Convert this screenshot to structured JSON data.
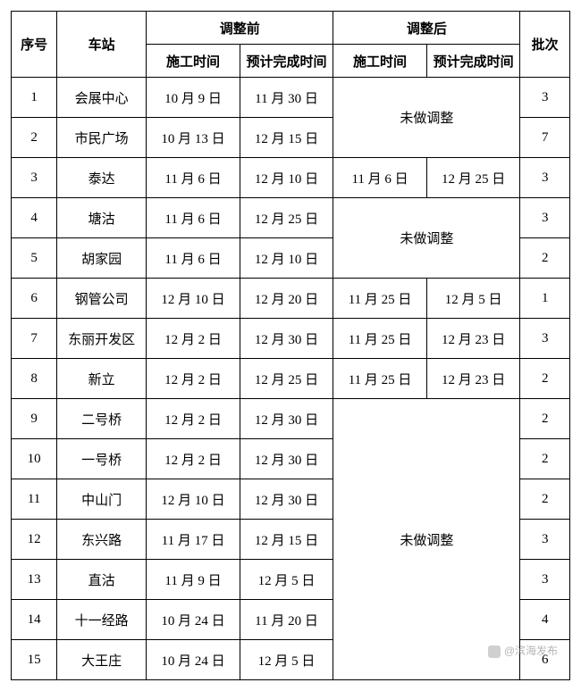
{
  "headers": {
    "seq": "序号",
    "station": "车站",
    "before": "调整前",
    "after": "调整后",
    "batch": "批次",
    "start": "施工时间",
    "finish": "预计完成时间"
  },
  "no_change": "未做调整",
  "rows": [
    {
      "seq": "1",
      "station": "会展中心",
      "b_start": "10 月 9 日",
      "b_end": "11 月 30 日",
      "batch": "3"
    },
    {
      "seq": "2",
      "station": "市民广场",
      "b_start": "10 月 13 日",
      "b_end": "12 月 15 日",
      "batch": "7"
    },
    {
      "seq": "3",
      "station": "泰达",
      "b_start": "11 月 6 日",
      "b_end": "12 月 10 日",
      "a_start": "11 月 6 日",
      "a_end": "12 月 25 日",
      "batch": "3"
    },
    {
      "seq": "4",
      "station": "塘沽",
      "b_start": "11 月 6 日",
      "b_end": "12 月 25 日",
      "batch": "3"
    },
    {
      "seq": "5",
      "station": "胡家园",
      "b_start": "11 月 6 日",
      "b_end": "12 月 10 日",
      "batch": "2"
    },
    {
      "seq": "6",
      "station": "钢管公司",
      "b_start": "12 月 10 日",
      "b_end": "12 月 20 日",
      "a_start": "11 月 25 日",
      "a_end": "12 月 5 日",
      "batch": "1"
    },
    {
      "seq": "7",
      "station": "东丽开发区",
      "b_start": "12 月 2 日",
      "b_end": "12 月 30 日",
      "a_start": "11 月 25 日",
      "a_end": "12 月 23 日",
      "batch": "3"
    },
    {
      "seq": "8",
      "station": "新立",
      "b_start": "12 月 2 日",
      "b_end": "12 月 25 日",
      "a_start": "11 月 25 日",
      "a_end": "12 月 23 日",
      "batch": "2"
    },
    {
      "seq": "9",
      "station": "二号桥",
      "b_start": "12 月 2 日",
      "b_end": "12 月 30 日",
      "batch": "2"
    },
    {
      "seq": "10",
      "station": "一号桥",
      "b_start": "12 月 2 日",
      "b_end": "12 月 30 日",
      "batch": "2"
    },
    {
      "seq": "11",
      "station": "中山门",
      "b_start": "12 月 10 日",
      "b_end": "12 月 30 日",
      "batch": "2"
    },
    {
      "seq": "12",
      "station": "东兴路",
      "b_start": "11 月 17 日",
      "b_end": "12 月 15 日",
      "batch": "3"
    },
    {
      "seq": "13",
      "station": "直沽",
      "b_start": "11 月 9 日",
      "b_end": "12 月 5 日",
      "batch": "3"
    },
    {
      "seq": "14",
      "station": "十一经路",
      "b_start": "10 月 24 日",
      "b_end": "11 月 20 日",
      "batch": "4"
    },
    {
      "seq": "15",
      "station": "大王庄",
      "b_start": "10 月 24 日",
      "b_end": "12 月 5 日",
      "batch": "6"
    }
  ],
  "watermark": "@滨海发布"
}
